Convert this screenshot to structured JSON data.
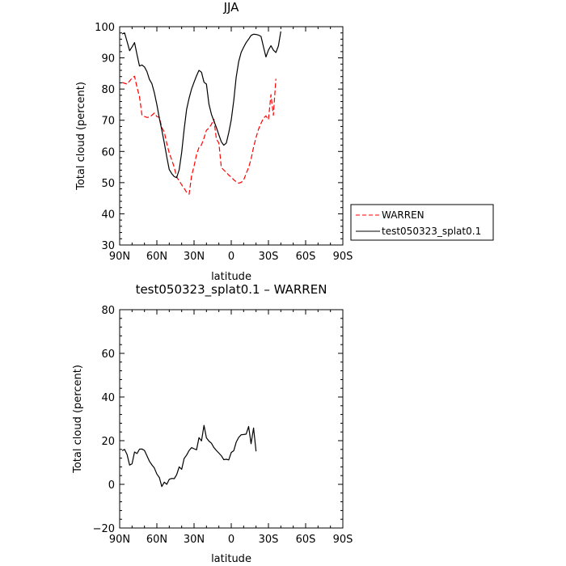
{
  "chart_data": [
    {
      "type": "line",
      "title": "JJA",
      "xlabel": "latitude",
      "ylabel": "Total cloud (percent)",
      "xlim": [
        -90,
        90
      ],
      "ylim": [
        30,
        100
      ],
      "x_ticks": [
        -90,
        -60,
        -30,
        0,
        30,
        60,
        90
      ],
      "x_tick_labels": [
        "90N",
        "60N",
        "30N",
        "0",
        "30S",
        "60S",
        "90S"
      ],
      "y_ticks": [
        30,
        40,
        50,
        60,
        70,
        80,
        90,
        100
      ],
      "y_tick_labels": [
        "30",
        "40",
        "50",
        "60",
        "70",
        "80",
        "90",
        "100"
      ],
      "grid": false,
      "legend": {
        "position": "right",
        "entries": [
          "WARREN",
          "test050323_splat0.1"
        ]
      },
      "series": [
        {
          "name": "WARREN",
          "color": "#ff0000",
          "dash": "dashed",
          "points": [
            [
              -88,
              82.1
            ],
            [
              -84,
              81.6
            ],
            [
              -80,
              83.5
            ],
            [
              -78,
              84.1
            ],
            [
              -76,
              80.5
            ],
            [
              -74,
              77.6
            ],
            [
              -72,
              71.6
            ],
            [
              -70,
              71.2
            ],
            [
              -68,
              70.9
            ],
            [
              -66,
              71.0
            ],
            [
              -64,
              71.6
            ],
            [
              -62,
              72.3
            ],
            [
              -60,
              71.2
            ],
            [
              -58,
              70.9
            ],
            [
              -56,
              67.7
            ],
            [
              -54,
              66.2
            ],
            [
              -52,
              62.5
            ],
            [
              -50,
              59.5
            ],
            [
              -48,
              57.3
            ],
            [
              -46,
              54.9
            ],
            [
              -44,
              51.8
            ],
            [
              -42,
              50.6
            ],
            [
              -40,
              49.3
            ],
            [
              -38,
              48.2
            ],
            [
              -36,
              46.9
            ],
            [
              -34,
              46.3
            ],
            [
              -32,
              52.1
            ],
            [
              -30,
              55.3
            ],
            [
              -28,
              59.0
            ],
            [
              -26,
              61.3
            ],
            [
              -24,
              62.1
            ],
            [
              -22,
              64.3
            ],
            [
              -20,
              66.8
            ],
            [
              -18,
              67.5
            ],
            [
              -16,
              68.7
            ],
            [
              -14,
              70.3
            ],
            [
              -12,
              64.0
            ],
            [
              -10,
              62.7
            ],
            [
              -8,
              54.9
            ],
            [
              -6,
              54.0
            ],
            [
              -4,
              53.3
            ],
            [
              -2,
              52.4
            ],
            [
              0,
              51.8
            ],
            [
              2,
              50.9
            ],
            [
              4,
              50.3
            ],
            [
              6,
              49.8
            ],
            [
              8,
              50.1
            ],
            [
              10,
              50.8
            ],
            [
              12,
              52.9
            ],
            [
              14,
              54.9
            ],
            [
              16,
              57.5
            ],
            [
              18,
              61.4
            ],
            [
              20,
              64.5
            ],
            [
              22,
              67.1
            ],
            [
              24,
              69.0
            ],
            [
              26,
              70.7
            ],
            [
              28,
              71.4
            ],
            [
              30,
              70.2
            ],
            [
              32,
              78.2
            ],
            [
              34,
              71.6
            ],
            [
              36,
              83.3
            ]
          ]
        },
        {
          "name": "test050323_splat0.1",
          "color": "#000000",
          "dash": "solid",
          "points": [
            [
              -88,
              97.7
            ],
            [
              -86,
              98.0
            ],
            [
              -84,
              95.2
            ],
            [
              -82,
              92.3
            ],
            [
              -80,
              93.5
            ],
            [
              -78,
              94.9
            ],
            [
              -76,
              91.0
            ],
            [
              -74,
              87.4
            ],
            [
              -72,
              87.7
            ],
            [
              -70,
              87.1
            ],
            [
              -68,
              85.6
            ],
            [
              -66,
              83.1
            ],
            [
              -64,
              81.7
            ],
            [
              -62,
              78.8
            ],
            [
              -60,
              75.0
            ],
            [
              -58,
              70.6
            ],
            [
              -56,
              66.9
            ],
            [
              -54,
              62.7
            ],
            [
              -52,
              58.2
            ],
            [
              -50,
              54.2
            ],
            [
              -48,
              52.9
            ],
            [
              -46,
              51.9
            ],
            [
              -44,
              51.6
            ],
            [
              -42,
              54.1
            ],
            [
              -40,
              59.7
            ],
            [
              -38,
              67.0
            ],
            [
              -36,
              73.5
            ],
            [
              -34,
              77.1
            ],
            [
              -32,
              80.0
            ],
            [
              -30,
              82.2
            ],
            [
              -28,
              84.3
            ],
            [
              -26,
              86.0
            ],
            [
              -24,
              85.4
            ],
            [
              -22,
              82.2
            ],
            [
              -20,
              81.6
            ],
            [
              -18,
              75.2
            ],
            [
              -16,
              71.9
            ],
            [
              -14,
              69.8
            ],
            [
              -12,
              67.7
            ],
            [
              -10,
              65.3
            ],
            [
              -8,
              63.1
            ],
            [
              -6,
              62.0
            ],
            [
              -4,
              62.7
            ],
            [
              -2,
              66.0
            ],
            [
              0,
              70.1
            ],
            [
              2,
              76.3
            ],
            [
              4,
              83.8
            ],
            [
              6,
              88.8
            ],
            [
              8,
              91.8
            ],
            [
              10,
              93.4
            ],
            [
              12,
              94.9
            ],
            [
              14,
              96.0
            ],
            [
              16,
              97.2
            ],
            [
              18,
              97.6
            ],
            [
              20,
              97.5
            ],
            [
              22,
              97.3
            ],
            [
              24,
              96.9
            ],
            [
              26,
              93.5
            ],
            [
              28,
              90.3
            ],
            [
              30,
              92.5
            ],
            [
              32,
              93.9
            ],
            [
              34,
              92.5
            ],
            [
              36,
              91.7
            ],
            [
              38,
              93.8
            ],
            [
              40,
              98.5
            ]
          ]
        }
      ]
    },
    {
      "type": "line",
      "title": "test050323_splat0.1 – WARREN",
      "xlabel": "latitude",
      "ylabel": "Total cloud (percent)",
      "xlim": [
        -90,
        90
      ],
      "ylim": [
        -20,
        80
      ],
      "x_ticks": [
        -90,
        -60,
        -30,
        0,
        30,
        60,
        90
      ],
      "x_tick_labels": [
        "90N",
        "60N",
        "30N",
        "0",
        "30S",
        "60S",
        "90S"
      ],
      "y_ticks": [
        -20,
        0,
        20,
        40,
        60,
        80
      ],
      "y_tick_labels": [
        "−20",
        "0",
        "20",
        "40",
        "60",
        "80"
      ],
      "grid": false,
      "series": [
        {
          "color": "#000000",
          "dash": "solid",
          "points": [
            [
              -88,
              15.4
            ],
            [
              -86,
              16.0
            ],
            [
              -84,
              13.6
            ],
            [
              -82,
              8.8
            ],
            [
              -80,
              9.4
            ],
            [
              -78,
              14.8
            ],
            [
              -76,
              14.1
            ],
            [
              -74,
              16.1
            ],
            [
              -72,
              16.2
            ],
            [
              -70,
              15.5
            ],
            [
              -68,
              13.1
            ],
            [
              -66,
              10.6
            ],
            [
              -64,
              8.9
            ],
            [
              -62,
              7.5
            ],
            [
              -60,
              4.7
            ],
            [
              -58,
              3.1
            ],
            [
              -56,
              -1.0
            ],
            [
              -54,
              1.0
            ],
            [
              -52,
              0.0
            ],
            [
              -50,
              2.3
            ],
            [
              -48,
              2.7
            ],
            [
              -46,
              2.6
            ],
            [
              -44,
              4.4
            ],
            [
              -42,
              8.0
            ],
            [
              -40,
              6.9
            ],
            [
              -38,
              11.8
            ],
            [
              -36,
              13.4
            ],
            [
              -34,
              15.5
            ],
            [
              -32,
              16.8
            ],
            [
              -30,
              16.3
            ],
            [
              -28,
              15.8
            ],
            [
              -26,
              21.4
            ],
            [
              -24,
              19.9
            ],
            [
              -22,
              27.0
            ],
            [
              -20,
              21.3
            ],
            [
              -18,
              19.8
            ],
            [
              -16,
              18.8
            ],
            [
              -14,
              16.9
            ],
            [
              -12,
              15.5
            ],
            [
              -10,
              14.3
            ],
            [
              -8,
              13.1
            ],
            [
              -6,
              11.3
            ],
            [
              -4,
              11.5
            ],
            [
              -2,
              11.2
            ],
            [
              0,
              14.6
            ],
            [
              2,
              15.4
            ],
            [
              4,
              19.3
            ],
            [
              6,
              21.5
            ],
            [
              8,
              22.7
            ],
            [
              10,
              22.8
            ],
            [
              12,
              23.0
            ],
            [
              14,
              26.5
            ],
            [
              16,
              18.6
            ],
            [
              18,
              25.8
            ],
            [
              20,
              15.1
            ]
          ]
        }
      ]
    }
  ]
}
